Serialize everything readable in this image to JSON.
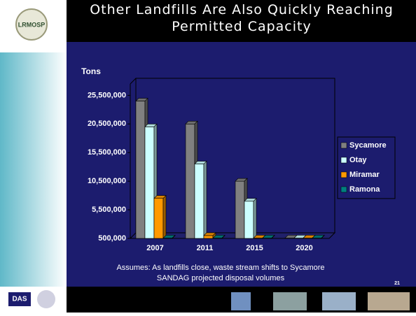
{
  "chart_data": {
    "type": "bar3d",
    "title": "Other Landfills Are Also Quickly Reaching Permitted Capacity",
    "y_axis_title": "Tons",
    "categories": [
      "2007",
      "2011",
      "2015",
      "2020"
    ],
    "series": [
      {
        "name": "Sycamore",
        "color": "#808080",
        "values": [
          24500000,
          20500000,
          10500000,
          500000
        ]
      },
      {
        "name": "Otay",
        "color": "#ccffff",
        "values": [
          20000000,
          13500000,
          7000000,
          500000
        ]
      },
      {
        "name": "Miramar",
        "color": "#ff9900",
        "values": [
          7500000,
          1000000,
          500000,
          500000
        ]
      },
      {
        "name": "Ramona",
        "color": "#008080",
        "values": [
          500000,
          500000,
          500000,
          500000
        ]
      }
    ],
    "ylim": [
      500000,
      27500000
    ],
    "yticks": [
      {
        "value": 500000,
        "label": "500,000"
      },
      {
        "value": 5500000,
        "label": "5,500,000"
      },
      {
        "value": 10500000,
        "label": "10,500,000"
      },
      {
        "value": 15500000,
        "label": "15,500,000"
      },
      {
        "value": 20500000,
        "label": "20,500,000"
      },
      {
        "value": 25500000,
        "label": "25,500,000"
      }
    ],
    "legend": "right",
    "annotations": [
      "Assumes: As landfills close, waste stream shifts to Sycamore",
      "SANDAG projected disposal volumes"
    ]
  },
  "logos": {
    "top": "LRMOSP",
    "bottom": "DAS"
  },
  "page_number": "21"
}
